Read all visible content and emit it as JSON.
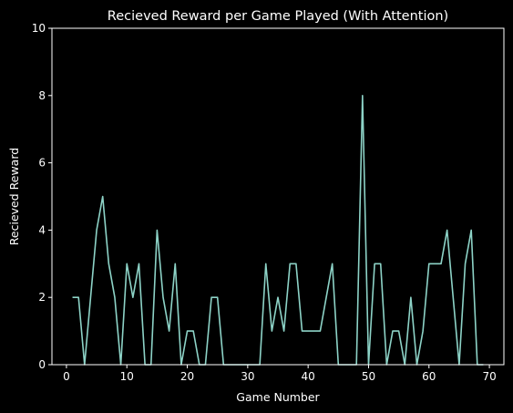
{
  "chart_data": {
    "type": "line",
    "title": "Recieved Reward per Game Played (With Attention)",
    "xlabel": "Game Number",
    "ylabel": "Recieved Reward",
    "xlim": [
      -2.4,
      72.4
    ],
    "ylim": [
      0,
      10
    ],
    "xticks": [
      0,
      10,
      20,
      30,
      40,
      50,
      60,
      70
    ],
    "yticks": [
      0,
      2,
      4,
      6,
      8,
      10
    ],
    "grid": false,
    "colors": {
      "background": "#000000",
      "axes": "#ffffff",
      "line": "#8dd3c7"
    },
    "series": [
      {
        "x": [
          1,
          2,
          3,
          4,
          5,
          6,
          7,
          8,
          9,
          10,
          11,
          12,
          13,
          14,
          15,
          16,
          17,
          18,
          19,
          20,
          21,
          22,
          23,
          24,
          25,
          26,
          27,
          28,
          29,
          30,
          31,
          32,
          33,
          34,
          35,
          36,
          37,
          38,
          39,
          40,
          41,
          42,
          43,
          44,
          45,
          46,
          47,
          48,
          49,
          50,
          51,
          52,
          53,
          54,
          55,
          56,
          57,
          58,
          59,
          60,
          61,
          62,
          63,
          64,
          65,
          66,
          67,
          68,
          69
        ],
        "values": [
          2,
          2,
          0,
          2,
          4,
          5,
          3,
          2,
          0,
          3,
          2,
          3,
          0,
          0,
          4,
          2,
          1,
          3,
          0,
          1,
          1,
          0,
          0,
          2,
          2,
          0,
          0,
          0,
          0,
          0,
          0,
          0,
          3,
          1,
          2,
          1,
          3,
          3,
          1,
          1,
          1,
          1,
          2,
          3,
          0,
          0,
          0,
          0,
          8,
          0,
          3,
          3,
          0,
          1,
          1,
          0,
          2,
          0,
          1,
          3,
          3,
          3,
          4,
          2,
          0,
          3,
          4,
          0,
          0
        ]
      }
    ]
  }
}
